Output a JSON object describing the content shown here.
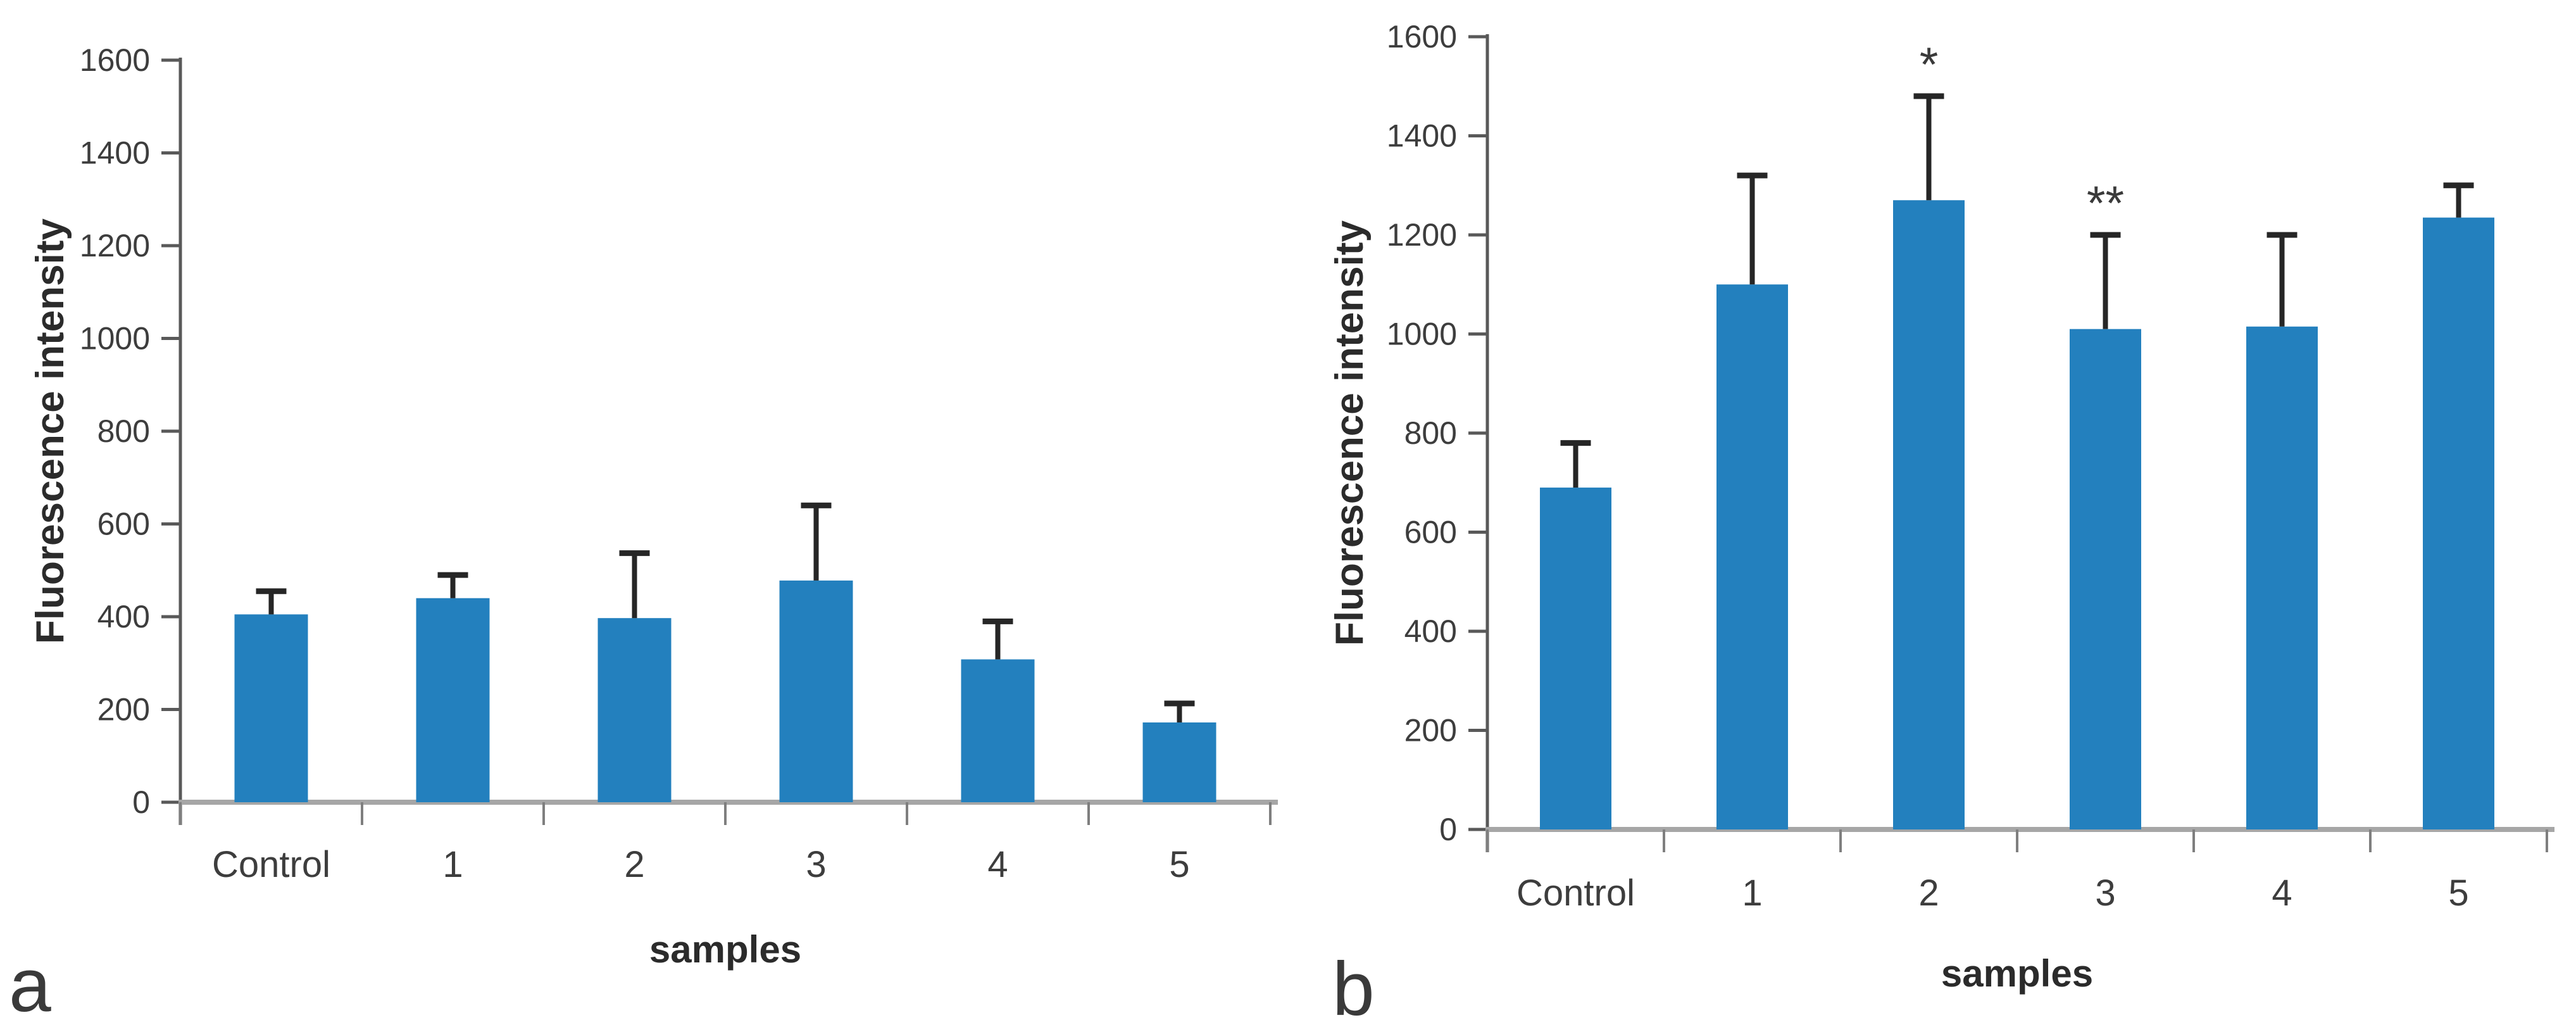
{
  "colors": {
    "bar": "#2380BE",
    "error_bar": "#262626",
    "x_axis": "#A6A6A6",
    "y_axis": "#595959",
    "tick_text": "#3D3D3D",
    "title_text": "#2B2B2B",
    "annotation_text": "#3A3A3A"
  },
  "chart_data": [
    {
      "type": "bar",
      "panel_letter": "a",
      "title": "",
      "xlabel": "samples",
      "ylabel": "Fluorescence intensity",
      "categories": [
        "Control",
        "1",
        "2",
        "3",
        "4",
        "5"
      ],
      "values": [
        405,
        440,
        397,
        478,
        308,
        172
      ],
      "error_plus": [
        50,
        50,
        140,
        162,
        82,
        41
      ],
      "error_cap_values": [
        455,
        490,
        537,
        640,
        390,
        213
      ],
      "annotations": [
        "",
        "",
        "",
        "",
        "",
        ""
      ],
      "ylim": [
        0,
        1600
      ],
      "ytick_step": 200,
      "yticks": [
        0,
        200,
        400,
        600,
        800,
        1000,
        1200,
        1400,
        1600
      ],
      "grid": false,
      "legend": "none",
      "bar_color": "#2380BE"
    },
    {
      "type": "bar",
      "panel_letter": "b",
      "title": "",
      "xlabel": "samples",
      "ylabel": "Fluorescence intensity",
      "categories": [
        "Control",
        "1",
        "2",
        "3",
        "4",
        "5"
      ],
      "values": [
        690,
        1100,
        1270,
        1010,
        1015,
        1235
      ],
      "error_plus": [
        90,
        220,
        210,
        190,
        185,
        65
      ],
      "error_cap_values": [
        780,
        1320,
        1480,
        1200,
        1200,
        1300
      ],
      "annotations": [
        "",
        "",
        "*",
        "**",
        "",
        ""
      ],
      "ylim": [
        0,
        1600
      ],
      "ytick_step": 200,
      "yticks": [
        0,
        200,
        400,
        600,
        800,
        1000,
        1200,
        1400,
        1600
      ],
      "grid": false,
      "legend": "none",
      "bar_color": "#2380BE"
    }
  ]
}
